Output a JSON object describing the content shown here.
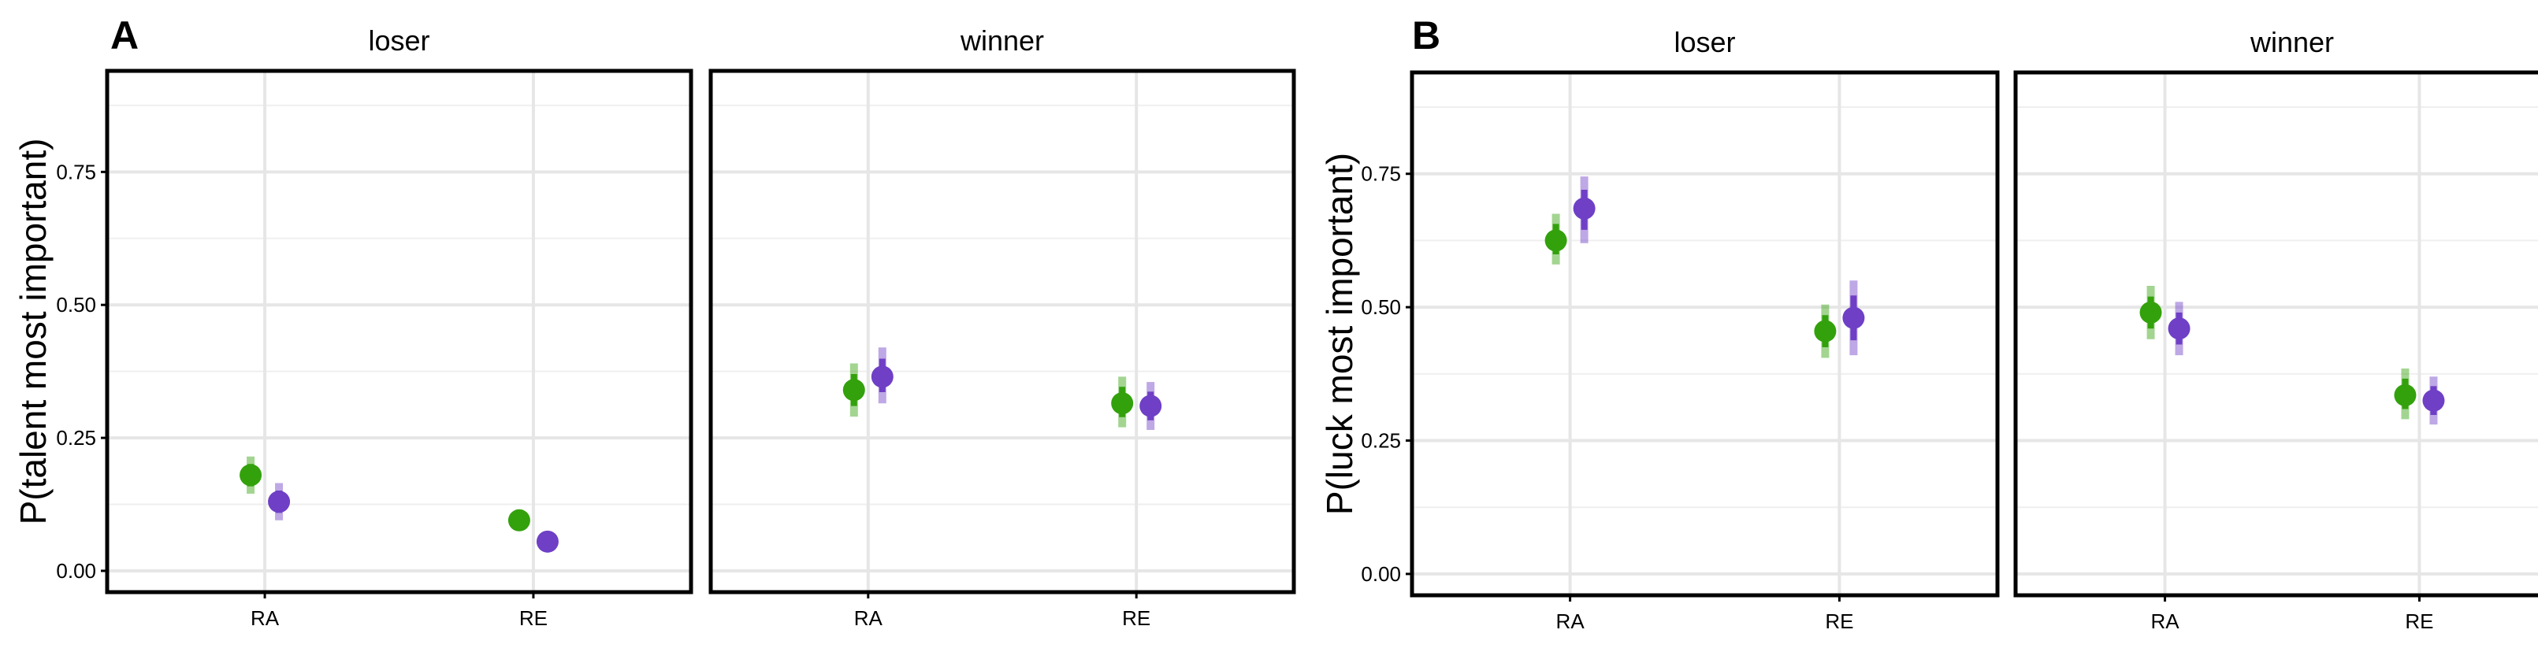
{
  "chart_data": [
    {
      "type": "scatter",
      "panel_label": "A",
      "ylabel": "P(talent most important)",
      "ylim": [
        -0.04,
        0.94
      ],
      "yticks": [
        "0.00",
        "0.25",
        "0.50",
        "0.75"
      ],
      "categories": [
        "RA",
        "RE"
      ],
      "grid": true,
      "facets": [
        {
          "title": "loser",
          "series": [
            {
              "color": "#33a10c",
              "values": [
                0.18,
                0.095
              ],
              "lower": [
                0.145,
                0.08
              ],
              "upper": [
                0.215,
                0.115
              ]
            },
            {
              "color": "#6f3fc6",
              "values": [
                0.13,
                0.055
              ],
              "lower": [
                0.095,
                0.045
              ],
              "upper": [
                0.165,
                0.065
              ]
            }
          ]
        },
        {
          "title": "winner",
          "series": [
            {
              "color": "#33a10c",
              "values": [
                0.34,
                0.315
              ],
              "lower": [
                0.29,
                0.27
              ],
              "upper": [
                0.39,
                0.365
              ]
            },
            {
              "color": "#6f3fc6",
              "values": [
                0.365,
                0.31
              ],
              "lower": [
                0.315,
                0.265
              ],
              "upper": [
                0.42,
                0.355
              ]
            }
          ]
        }
      ]
    },
    {
      "type": "scatter",
      "panel_label": "B",
      "ylabel": "P(luck most important)",
      "ylim": [
        -0.04,
        0.94
      ],
      "yticks": [
        "0.00",
        "0.25",
        "0.50",
        "0.75"
      ],
      "categories": [
        "RA",
        "RE"
      ],
      "grid": true,
      "facets": [
        {
          "title": "loser",
          "series": [
            {
              "color": "#33a10c",
              "values": [
                0.625,
                0.455
              ],
              "lower": [
                0.58,
                0.405
              ],
              "upper": [
                0.675,
                0.505
              ]
            },
            {
              "color": "#6f3fc6",
              "values": [
                0.685,
                0.48
              ],
              "lower": [
                0.62,
                0.41
              ],
              "upper": [
                0.745,
                0.55
              ]
            }
          ]
        },
        {
          "title": "winner",
          "series": [
            {
              "color": "#33a10c",
              "values": [
                0.49,
                0.335
              ],
              "lower": [
                0.44,
                0.29
              ],
              "upper": [
                0.54,
                0.385
              ]
            },
            {
              "color": "#6f3fc6",
              "values": [
                0.46,
                0.325
              ],
              "lower": [
                0.41,
                0.28
              ],
              "upper": [
                0.51,
                0.37
              ]
            }
          ]
        }
      ]
    }
  ]
}
